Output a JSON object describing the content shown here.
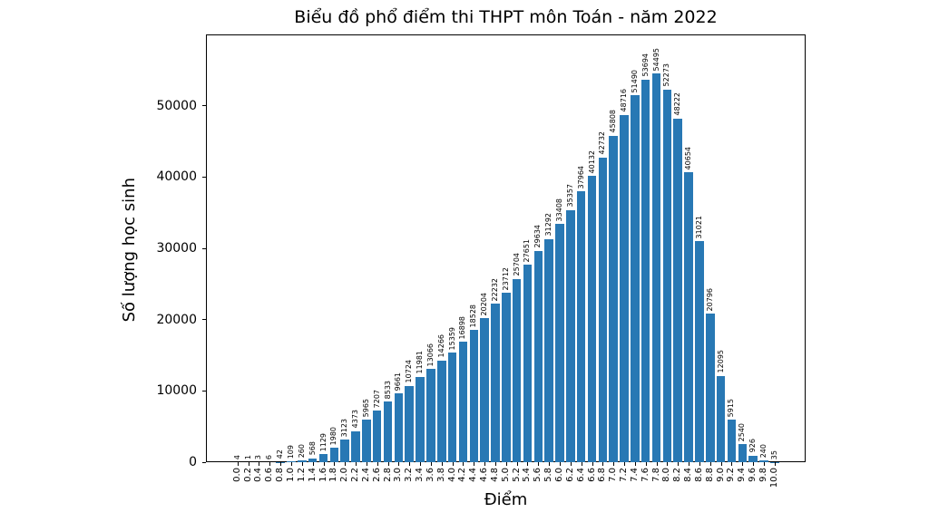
{
  "figure": {
    "background": "#ffffff",
    "text_color": "#000000",
    "spine_color": "#000000"
  },
  "chart_data": {
    "type": "bar",
    "title": "Biểu đồ phổ điểm thi THPT môn Toán - năm 2022",
    "xlabel": "Điểm",
    "ylabel": "Số lượng học sinh",
    "categories": [
      "0.0",
      "0.2",
      "0.4",
      "0.6",
      "0.8",
      "1.0",
      "1.2",
      "1.4",
      "1.6",
      "1.8",
      "2.0",
      "2.2",
      "2.4",
      "2.6",
      "2.8",
      "3.0",
      "3.2",
      "3.4",
      "3.6",
      "3.8",
      "4.0",
      "4.2",
      "4.4",
      "4.6",
      "4.8",
      "5.0",
      "5.2",
      "5.4",
      "5.6",
      "5.8",
      "6.0",
      "6.2",
      "6.4",
      "6.6",
      "6.8",
      "7.0",
      "7.2",
      "7.4",
      "7.6",
      "7.8",
      "8.0",
      "8.2",
      "8.4",
      "8.6",
      "8.8",
      "9.0",
      "9.2",
      "9.4",
      "9.6",
      "9.8",
      "10.0"
    ],
    "values": [
      4,
      1,
      3,
      6,
      42,
      109,
      260,
      568,
      1129,
      1980,
      3123,
      4373,
      5965,
      7207,
      8533,
      9661,
      10724,
      11981,
      13066,
      14266,
      15359,
      16898,
      18528,
      20204,
      22232,
      23712,
      25704,
      27651,
      29634,
      31292,
      33408,
      35357,
      37964,
      40132,
      42732,
      45808,
      48716,
      51490,
      53694,
      54495,
      52273,
      48222,
      40654,
      31021,
      20796,
      12095,
      5915,
      2540,
      926,
      240,
      35
    ],
    "ylim": [
      0,
      60000
    ],
    "yticks": [
      0,
      10000,
      20000,
      30000,
      40000,
      50000
    ],
    "bar_color": "#2878b4",
    "grid": false,
    "legend": null,
    "value_labels_rotation": 90,
    "xtick_rotation": 90
  }
}
